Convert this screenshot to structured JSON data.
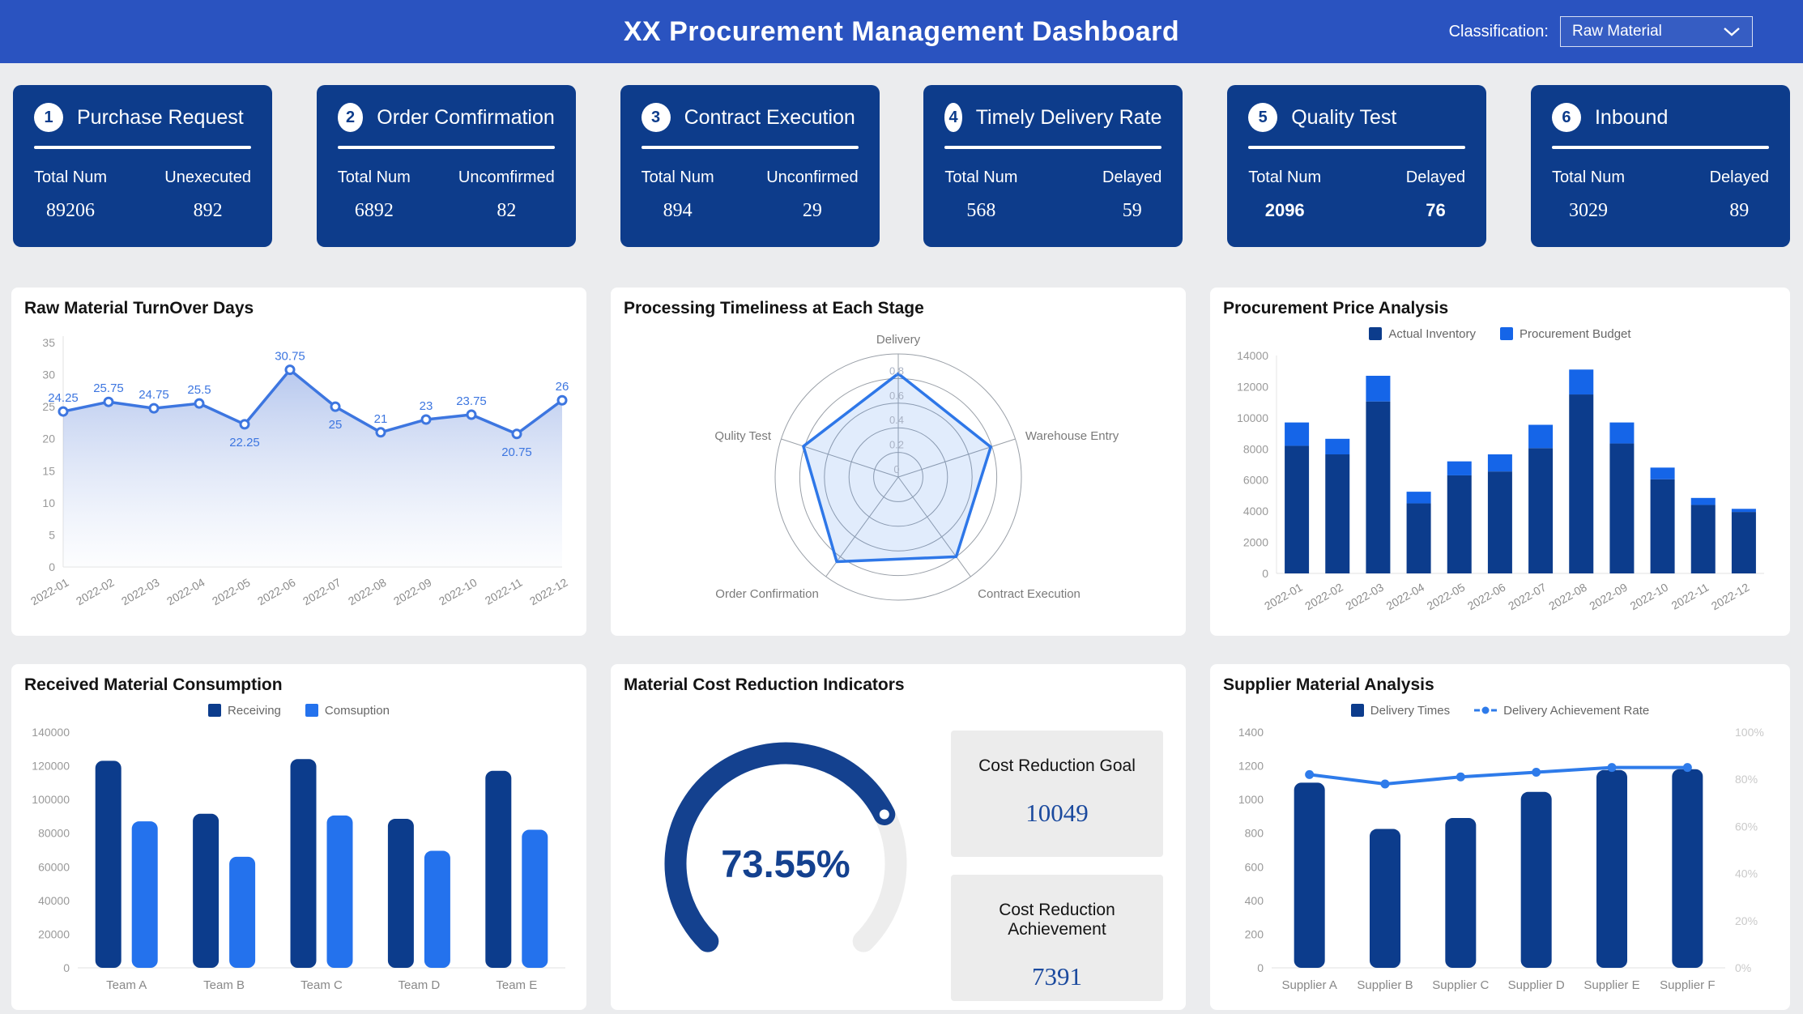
{
  "header": {
    "title": "XX Procurement Management Dashboard",
    "classification_label": "Classification:",
    "classification_value": "Raw Material"
  },
  "colors": {
    "header_blue": "#2a53c0",
    "card_navy": "#0d3c8b",
    "series_navy": "#0c3c8c",
    "bright_blue": "#1565e8",
    "consumption_blue": "#2472ed",
    "supplier_line_blue": "#2e7bea",
    "turnover_line_blue": "#3d76e0",
    "gauge_navy": "#14418f",
    "serif_value_navy": "#1b4a9e",
    "page_background": "#ebecee"
  },
  "kpi_cards": [
    {
      "num": "1",
      "title": "Purchase Request",
      "left_label": "Total Num",
      "right_label": "Unexecuted",
      "left_value": "89206",
      "right_value": "892"
    },
    {
      "num": "2",
      "title": "Order Comfirmation",
      "left_label": "Total Num",
      "right_label": "Uncomfirmed",
      "left_value": "6892",
      "right_value": "82"
    },
    {
      "num": "3",
      "title": "Contract Execution",
      "left_label": "Total Num",
      "right_label": "Unconfirmed",
      "left_value": "894",
      "right_value": "29"
    },
    {
      "num": "4",
      "title": "Timely Delivery Rate",
      "left_label": "Total Num",
      "right_label": "Delayed",
      "left_value": "568",
      "right_value": "59"
    },
    {
      "num": "5",
      "title": "Quality Test",
      "left_label": "Total Num",
      "right_label": "Delayed",
      "left_value": "2096",
      "right_value": "76"
    },
    {
      "num": "6",
      "title": "Inbound",
      "left_label": "Total Num",
      "right_label": "Delayed",
      "left_value": "3029",
      "right_value": "89"
    }
  ],
  "chart_data": [
    {
      "id": "turnover",
      "type": "line",
      "title": "Raw Material TurnOver Days",
      "x": [
        "2022-01",
        "2022-02",
        "2022-03",
        "2022-04",
        "2022-05",
        "2022-06",
        "2022-07",
        "2022-08",
        "2022-09",
        "2022-10",
        "2022-11",
        "2022-12"
      ],
      "values": [
        24.25,
        25.75,
        24.75,
        25.5,
        22.25,
        30.75,
        25,
        21,
        23,
        23.75,
        20.75,
        26
      ],
      "ylim": [
        0,
        35
      ],
      "ytick_step": 5,
      "labels_below": [
        4,
        6,
        10
      ],
      "line_color": "#3d76e0",
      "area_top_color": "rgba(85,125,215,0.42)",
      "area_bottom_color": "rgba(245,248,253,0.25)"
    },
    {
      "id": "radar",
      "type": "radar",
      "title": "Processing Timeliness at Each Stage",
      "categories": [
        "Delivery",
        "Warehouse Entry",
        "Contract Execution",
        "Order Confirmation",
        "Qulity Test"
      ],
      "values": [
        0.84,
        0.79,
        0.8,
        0.85,
        0.81
      ],
      "max": 1,
      "ticks": [
        0,
        0.2,
        0.4,
        0.6,
        0.8
      ],
      "line_color": "#2e77e8",
      "fill_color": "rgba(46,119,232,0.14)",
      "grid_color": "#9aa0a8"
    },
    {
      "id": "price",
      "type": "bar-stacked",
      "title": "Procurement Price Analysis",
      "categories": [
        "2022-01",
        "2022-02",
        "2022-03",
        "2022-04",
        "2022-05",
        "2022-06",
        "2022-07",
        "2022-08",
        "2022-09",
        "2022-10",
        "2022-11",
        "2022-12"
      ],
      "series": [
        {
          "name": "Actual Inventory",
          "color": "#0c3c8c",
          "values": [
            8200,
            7650,
            11050,
            4500,
            6300,
            6550,
            8050,
            11500,
            8350,
            6050,
            4400,
            3950
          ]
        },
        {
          "name": "Procurement Budget",
          "color": "#1565e8",
          "values": [
            1500,
            1000,
            1650,
            750,
            900,
            1100,
            1500,
            1600,
            1350,
            750,
            450,
            200
          ]
        }
      ],
      "ylim": [
        0,
        14000
      ],
      "ytick_step": 2000,
      "legend_position": "top"
    },
    {
      "id": "consumption",
      "type": "bar",
      "title": "Received Material Consumption",
      "categories": [
        "Team A",
        "Team B",
        "Team C",
        "Team D",
        "Team E"
      ],
      "series": [
        {
          "name": "Receiving",
          "color": "#0c3c8c",
          "values": [
            123000,
            91500,
            124000,
            88500,
            117000
          ]
        },
        {
          "name": "Comsuption",
          "color": "#2472ed",
          "values": [
            87000,
            66000,
            90500,
            69500,
            82000
          ]
        }
      ],
      "ylim": [
        0,
        140000
      ],
      "ytick_step": 20000,
      "legend_position": "top"
    },
    {
      "id": "cost_gauge",
      "type": "gauge",
      "title": "Material Cost Reduction Indicators",
      "value_pct": 73.55,
      "value_label": "73.55%",
      "goal_label": "Cost Reduction Goal",
      "goal_value": "10049",
      "achievement_label": "Cost Reduction Achievement",
      "achievement_value": "7391",
      "arc_color": "#14418f",
      "track_color": "#ededed"
    },
    {
      "id": "supplier",
      "type": "bar-line",
      "title": "Supplier Material Analysis",
      "categories": [
        "Supplier A",
        "Supplier B",
        "Supplier C",
        "Supplier D",
        "Supplier E",
        "Supplier F"
      ],
      "bar_series": {
        "name": "Delivery Times",
        "color": "#0c3c8c",
        "values": [
          1100,
          825,
          890,
          1045,
          1175,
          1180
        ]
      },
      "line_series": {
        "name": "Delivery Achievement Rate",
        "color": "#2e7bea",
        "values_pct": [
          82,
          78,
          81,
          83,
          85,
          85
        ]
      },
      "ylim_left": [
        0,
        1400
      ],
      "ytick_step_left": 200,
      "ylim_right_pct": [
        0,
        100
      ],
      "ytick_step_right_pct": 20,
      "legend_position": "top"
    }
  ]
}
